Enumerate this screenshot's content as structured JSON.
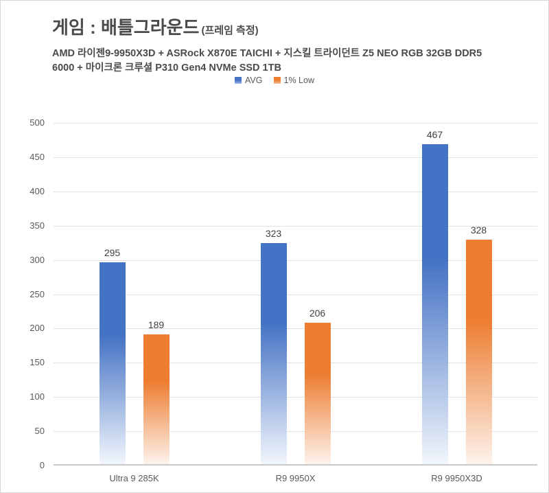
{
  "header": {
    "title": "게임 : 배틀그라운드",
    "title_suffix": "(프레임 측정)",
    "subtitle_line1": "AMD 라이젠9-9950X3D + ASRock X870E TAICHI + 지스킬 트라이던트 Z5 NEO RGB 32GB DDR5",
    "subtitle_line2": "6000 + 마이크론 크루셜 P310 Gen4 NVMe SSD 1TB"
  },
  "legend": {
    "items": [
      {
        "label": "AVG",
        "color": "#4472C4",
        "fade": "#E9F0FA"
      },
      {
        "label": "1% Low",
        "color": "#ED7D31",
        "fade": "#FCEFE5"
      }
    ]
  },
  "chart_data": {
    "type": "bar",
    "title": "게임 : 배틀그라운드 (프레임 측정)",
    "subtitle": "AMD 라이젠9-9950X3D + ASRock X870E TAICHI + 지스킬 트라이던트 Z5 NEO RGB 32GB DDR5 6000 + 마이크론 크루셜 P310 Gen4 NVMe SSD 1TB",
    "categories": [
      "Ultra 9 285K",
      "R9 9950X",
      "R9 9950X3D"
    ],
    "series": [
      {
        "name": "AVG",
        "values": [
          295,
          323,
          467
        ],
        "color": "#4472C4",
        "fade": "#F2F6FC"
      },
      {
        "name": "1% Low",
        "values": [
          189,
          206,
          328
        ],
        "color": "#ED7D31",
        "fade": "#FDF3EC"
      }
    ],
    "xlabel": "",
    "ylabel": "",
    "ylim": [
      0,
      500
    ],
    "ytick_step": 50,
    "grid": true,
    "legend_position": "top-center",
    "axis_text_color": "#595959",
    "data_label_color": "#3F3F3F"
  }
}
